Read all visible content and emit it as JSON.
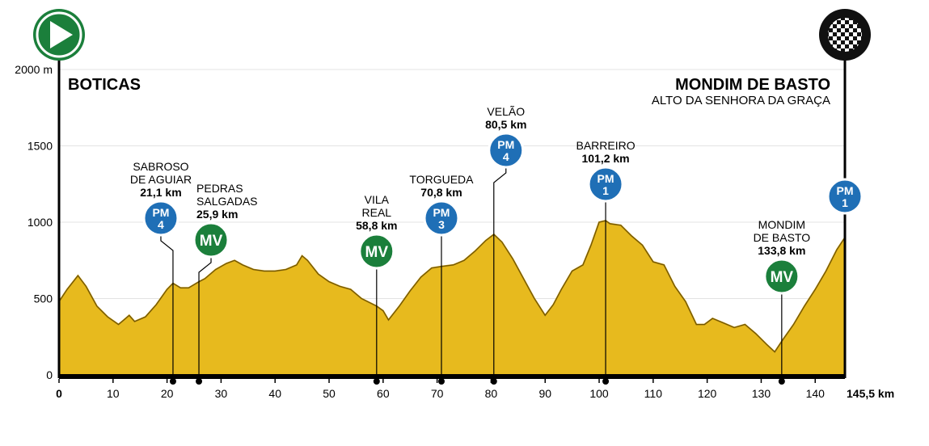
{
  "colors": {
    "profile_fill": "#e7ba1e",
    "profile_dark": "#c99a10",
    "axis": "#000000",
    "grid": "#e3e3e3",
    "pm_badge": "#1f6fb6",
    "pm_badge_ring": "#ffffff",
    "mv_badge": "#1b7f3b",
    "start_badge": "#1b7f3b",
    "finish_badge": "#111111",
    "text": "#000000"
  },
  "icons": {
    "start": "play-icon",
    "finish": "checkered-flag-icon"
  },
  "chart_data": {
    "type": "area",
    "title": "",
    "xlabel": "",
    "ylabel": "",
    "xlim": [
      0,
      145.5
    ],
    "ylim": [
      0,
      2000
    ],
    "grid": true,
    "x_ticks": [
      0,
      10,
      20,
      30,
      40,
      50,
      60,
      70,
      80,
      90,
      100,
      110,
      120,
      130,
      140
    ],
    "x_tick_labels": [
      "0",
      "10",
      "20",
      "30",
      "40",
      "50",
      "60",
      "70",
      "80",
      "90",
      "100",
      "110",
      "120",
      "130",
      "140"
    ],
    "x_end_label": "145,5 km",
    "y_ticks": [
      0,
      500,
      1000,
      1500,
      2000
    ],
    "y_tick_labels": [
      "0",
      "500",
      "1000",
      "1500",
      "2000 m"
    ],
    "start": {
      "name": "BOTICAS"
    },
    "finish": {
      "name": "MONDIM DE BASTO",
      "subtitle": "ALTO DA SENHORA DA GRAÇA"
    },
    "series": [
      {
        "x": [
          0,
          1.5,
          3.5,
          5,
          7,
          9,
          11,
          12,
          13,
          14,
          16,
          18,
          20,
          21.1,
          22.5,
          24,
          25.9,
          27,
          29,
          31,
          32.5,
          34,
          36,
          38,
          40,
          42,
          44,
          45,
          46,
          48,
          50,
          52,
          54,
          56,
          58.8,
          60,
          61,
          63,
          65,
          67,
          69,
          70.8,
          73,
          75,
          77,
          79,
          80.5,
          82,
          84,
          86,
          88,
          90,
          91.5,
          93,
          95,
          97,
          98.5,
          100,
          101.2,
          102,
          104,
          106,
          108,
          110,
          112,
          114,
          116,
          118,
          119.5,
          121,
          123,
          125,
          127,
          129,
          131,
          132.5,
          134,
          136,
          138,
          140,
          142,
          144,
          145.5
        ],
        "y": [
          480,
          560,
          650,
          580,
          450,
          380,
          330,
          360,
          390,
          350,
          380,
          460,
          560,
          600,
          570,
          570,
          610,
          630,
          690,
          730,
          750,
          720,
          690,
          680,
          680,
          690,
          720,
          780,
          750,
          660,
          610,
          580,
          560,
          500,
          450,
          420,
          360,
          450,
          550,
          640,
          700,
          710,
          720,
          750,
          810,
          880,
          920,
          870,
          760,
          630,
          500,
          390,
          460,
          560,
          680,
          720,
          850,
          1000,
          1010,
          990,
          980,
          910,
          850,
          740,
          720,
          580,
          480,
          330,
          330,
          370,
          340,
          310,
          330,
          270,
          200,
          150,
          230,
          330,
          450,
          560,
          680,
          820,
          900
        ]
      }
    ],
    "climbs": [
      {
        "name_lines": [
          "SABROSO",
          "DE AGUIAR"
        ],
        "km": 21.1,
        "km_label": "21,1 km",
        "badge": "PM",
        "category": "4"
      },
      {
        "name_lines": [
          "PEDRAS",
          "SALGADAS"
        ],
        "km": 25.9,
        "km_label": "25,9 km",
        "badge": "MV",
        "category": ""
      },
      {
        "name_lines": [
          "VILA",
          "REAL"
        ],
        "km": 58.8,
        "km_label": "58,8 km",
        "badge": "MV",
        "category": ""
      },
      {
        "name_lines": [
          "TORGUEDA"
        ],
        "km": 70.8,
        "km_label": "70,8 km",
        "badge": "PM",
        "category": "3"
      },
      {
        "name_lines": [
          "VELÃO"
        ],
        "km": 80.5,
        "km_label": "80,5 km",
        "badge": "PM",
        "category": "4"
      },
      {
        "name_lines": [
          "BARREIRO"
        ],
        "km": 101.2,
        "km_label": "101,2 km",
        "badge": "PM",
        "category": "1"
      },
      {
        "name_lines": [
          "MONDIM",
          "DE BASTO"
        ],
        "km": 133.8,
        "km_label": "133,8 km",
        "badge": "MV",
        "category": ""
      },
      {
        "name_lines": [],
        "km": 145.5,
        "km_label": "",
        "badge": "PM",
        "category": "1"
      }
    ]
  }
}
